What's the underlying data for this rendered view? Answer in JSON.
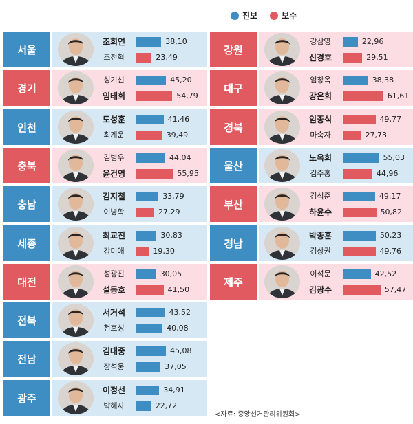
{
  "legend": [
    {
      "label": "진보",
      "color": "#3e8ec4"
    },
    {
      "label": "보수",
      "color": "#e05a5f"
    }
  ],
  "colors": {
    "progressive_dark": "#3e8ec4",
    "progressive_light": "#d7e8f5",
    "conservative_dark": "#e05a5f",
    "conservative_light": "#fbdde3"
  },
  "source": "<자료: 중앙선거관리위원회>",
  "chart_data": {
    "type": "bar",
    "title": "",
    "xlim": [
      0,
      70
    ],
    "regions": [
      {
        "region": "서울",
        "winner": "progressive",
        "candidates": [
          {
            "name": "조희연",
            "camp": "진보",
            "value": 38.1,
            "winner": true
          },
          {
            "name": "조전혁",
            "camp": "보수",
            "value": 23.49,
            "winner": false
          }
        ]
      },
      {
        "region": "경기",
        "winner": "conservative",
        "candidates": [
          {
            "name": "성기선",
            "camp": "진보",
            "value": 45.2,
            "winner": false
          },
          {
            "name": "임태희",
            "camp": "보수",
            "value": 54.79,
            "winner": true
          }
        ]
      },
      {
        "region": "인천",
        "winner": "progressive",
        "candidates": [
          {
            "name": "도성훈",
            "camp": "진보",
            "value": 41.46,
            "winner": true
          },
          {
            "name": "최계운",
            "camp": "보수",
            "value": 39.49,
            "winner": false
          }
        ]
      },
      {
        "region": "충북",
        "winner": "conservative",
        "candidates": [
          {
            "name": "김병우",
            "camp": "진보",
            "value": 44.04,
            "winner": false
          },
          {
            "name": "윤건영",
            "camp": "보수",
            "value": 55.95,
            "winner": true
          }
        ]
      },
      {
        "region": "충남",
        "winner": "progressive",
        "candidates": [
          {
            "name": "김지철",
            "camp": "진보",
            "value": 33.79,
            "winner": true
          },
          {
            "name": "이병학",
            "camp": "보수",
            "value": 27.29,
            "winner": false
          }
        ]
      },
      {
        "region": "세종",
        "winner": "progressive",
        "candidates": [
          {
            "name": "최교진",
            "camp": "진보",
            "value": 30.83,
            "winner": true
          },
          {
            "name": "강미애",
            "camp": "보수",
            "value": 19.3,
            "winner": false
          }
        ]
      },
      {
        "region": "대전",
        "winner": "conservative",
        "candidates": [
          {
            "name": "성광진",
            "camp": "진보",
            "value": 30.05,
            "winner": false
          },
          {
            "name": "설동호",
            "camp": "보수",
            "value": 41.5,
            "winner": true
          }
        ]
      },
      {
        "region": "전북",
        "winner": "progressive",
        "candidates": [
          {
            "name": "서거석",
            "camp": "진보",
            "value": 43.52,
            "winner": true
          },
          {
            "name": "천호성",
            "camp": "진보",
            "value": 40.08,
            "winner": false
          }
        ]
      },
      {
        "region": "전남",
        "winner": "progressive",
        "candidates": [
          {
            "name": "김대중",
            "camp": "진보",
            "value": 45.08,
            "winner": true
          },
          {
            "name": "장석웅",
            "camp": "진보",
            "value": 37.05,
            "winner": false
          }
        ]
      },
      {
        "region": "광주",
        "winner": "progressive",
        "candidates": [
          {
            "name": "이정선",
            "camp": "진보",
            "value": 34.91,
            "winner": true
          },
          {
            "name": "박혜자",
            "camp": "진보",
            "value": 22.72,
            "winner": false
          }
        ]
      },
      {
        "region": "강원",
        "winner": "conservative",
        "candidates": [
          {
            "name": "강삼영",
            "camp": "진보",
            "value": 22.96,
            "winner": false
          },
          {
            "name": "신경호",
            "camp": "보수",
            "value": 29.51,
            "winner": true
          }
        ]
      },
      {
        "region": "대구",
        "winner": "conservative",
        "candidates": [
          {
            "name": "엄창옥",
            "camp": "진보",
            "value": 38.38,
            "winner": false
          },
          {
            "name": "강은희",
            "camp": "보수",
            "value": 61.61,
            "winner": true
          }
        ]
      },
      {
        "region": "경북",
        "winner": "conservative",
        "candidates": [
          {
            "name": "임종식",
            "camp": "보수",
            "value": 49.77,
            "winner": true
          },
          {
            "name": "마숙자",
            "camp": "보수",
            "value": 27.73,
            "winner": false
          }
        ]
      },
      {
        "region": "울산",
        "winner": "progressive",
        "candidates": [
          {
            "name": "노옥희",
            "camp": "진보",
            "value": 55.03,
            "winner": true
          },
          {
            "name": "김주홍",
            "camp": "보수",
            "value": 44.96,
            "winner": false
          }
        ]
      },
      {
        "region": "부산",
        "winner": "conservative",
        "candidates": [
          {
            "name": "김석준",
            "camp": "진보",
            "value": 49.17,
            "winner": false
          },
          {
            "name": "하윤수",
            "camp": "보수",
            "value": 50.82,
            "winner": true
          }
        ]
      },
      {
        "region": "경남",
        "winner": "progressive",
        "candidates": [
          {
            "name": "박종훈",
            "camp": "진보",
            "value": 50.23,
            "winner": true
          },
          {
            "name": "김상권",
            "camp": "보수",
            "value": 49.76,
            "winner": false
          }
        ]
      },
      {
        "region": "제주",
        "winner": "conservative",
        "candidates": [
          {
            "name": "이석문",
            "camp": "진보",
            "value": 42.52,
            "winner": false
          },
          {
            "name": "김광수",
            "camp": "보수",
            "value": 57.47,
            "winner": true
          }
        ]
      }
    ]
  }
}
